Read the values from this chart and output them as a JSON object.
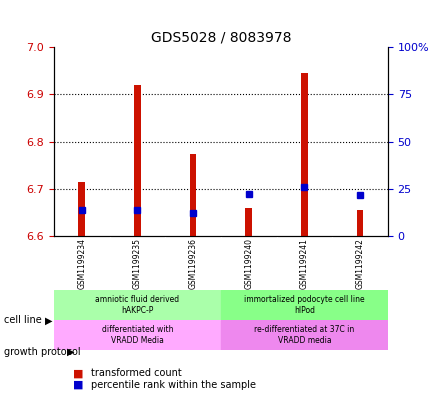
{
  "title": "GDS5028 / 8083978",
  "samples": [
    "GSM1199234",
    "GSM1199235",
    "GSM1199236",
    "GSM1199240",
    "GSM1199241",
    "GSM1199242"
  ],
  "red_values": [
    6.715,
    6.92,
    6.775,
    6.66,
    6.945,
    6.655
  ],
  "blue_values": [
    6.655,
    6.655,
    6.65,
    6.69,
    6.705,
    6.688
  ],
  "blue_percentile": [
    18,
    18,
    18,
    23,
    26,
    24
  ],
  "ylim_left": [
    6.6,
    7.0
  ],
  "ylim_right": [
    0,
    100
  ],
  "yticks_left": [
    6.6,
    6.7,
    6.8,
    6.9,
    7.0
  ],
  "yticks_right": [
    0,
    25,
    50,
    75,
    100
  ],
  "ytick_labels_right": [
    "0",
    "25",
    "50",
    "75",
    "100%"
  ],
  "red_color": "#cc1100",
  "blue_color": "#0000cc",
  "bar_base": 6.6,
  "cell_line_labels": [
    "amniotic fluid derived\nhAKPC-P",
    "immortalized podocyte cell line\nhIPod"
  ],
  "cell_line_colors": [
    "#aaffaa",
    "#88ff88"
  ],
  "cell_line_ranges": [
    [
      0,
      3
    ],
    [
      3,
      6
    ]
  ],
  "growth_protocol_labels": [
    "differentiated with\nVRADD Media",
    "re-differentiated at 37C in\nVRADD media"
  ],
  "growth_protocol_colors": [
    "#ffaaff",
    "#ee88ee"
  ],
  "growth_protocol_ranges": [
    [
      0,
      3
    ],
    [
      3,
      6
    ]
  ],
  "legend_red_label": "transformed count",
  "legend_blue_label": "percentile rank within the sample",
  "axis_label_left_color": "#cc0000",
  "axis_label_right_color": "#0000cc",
  "grid_color": "#000000",
  "background_color": "#ffffff",
  "plot_bg_color": "#ffffff"
}
